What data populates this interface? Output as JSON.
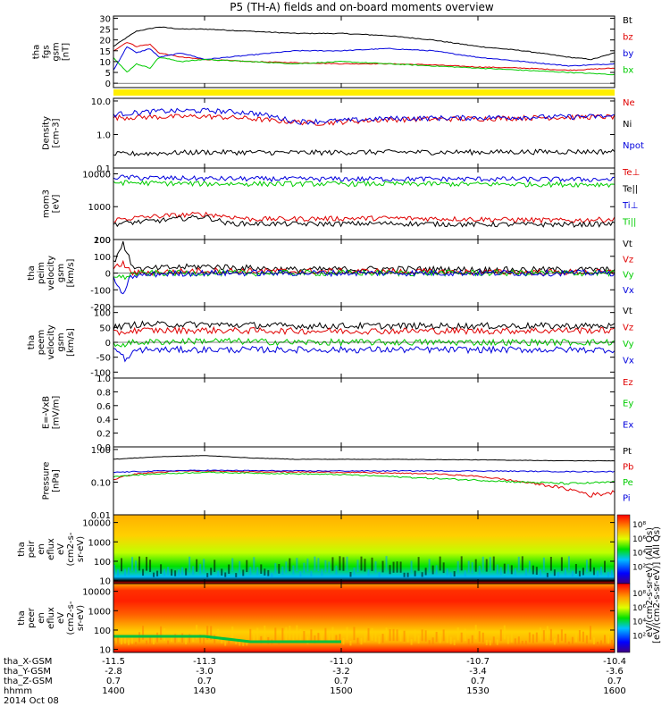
{
  "title": "P5 (TH-A) fields and on-board moments overview",
  "colors": {
    "black": "#000000",
    "red": "#e00000",
    "green": "#00cc00",
    "blue": "#0000dd",
    "yellow": "#ffee00"
  },
  "chart_data": [
    {
      "id": "fgs",
      "type": "line",
      "ylabel": [
        "tha",
        "fgs",
        "gsm",
        "[nT]"
      ],
      "ylim": [
        -2,
        31
      ],
      "yticks": [
        "30",
        "25",
        "20",
        "15",
        "10",
        "5",
        "0"
      ],
      "ytick_values": [
        30,
        25,
        20,
        15,
        10,
        5,
        0
      ],
      "series": [
        {
          "name": "Bt",
          "color": "#000000",
          "x": [
            -11.5,
            -11.45,
            -11.4,
            -11.35,
            -11.3,
            -11.2,
            -11.1,
            -11.0,
            -10.9,
            -10.8,
            -10.7,
            -10.6,
            -10.5,
            -10.45,
            -10.4
          ],
          "y": [
            17,
            24,
            26,
            25,
            25,
            24,
            23,
            23,
            22,
            20,
            17,
            15,
            12,
            11,
            14
          ]
        },
        {
          "name": "bz",
          "color": "#e00000",
          "x": [
            -11.5,
            -11.47,
            -11.45,
            -11.42,
            -11.4,
            -11.35,
            -11.3,
            -11.2,
            -11.1,
            -11.0,
            -10.9,
            -10.8,
            -10.7,
            -10.6,
            -10.5,
            -10.4
          ],
          "y": [
            15,
            19,
            17,
            18,
            14,
            12,
            11,
            10,
            9.5,
            9,
            9,
            8.5,
            7.5,
            7,
            6,
            7
          ]
        },
        {
          "name": "by",
          "color": "#0000dd",
          "x": [
            -11.5,
            -11.47,
            -11.45,
            -11.42,
            -11.4,
            -11.35,
            -11.3,
            -11.2,
            -11.1,
            -11.0,
            -10.9,
            -10.8,
            -10.7,
            -10.6,
            -10.5,
            -10.4
          ],
          "y": [
            6,
            17,
            14,
            16,
            12,
            14,
            11,
            13,
            15,
            15,
            16,
            15,
            12,
            10,
            8,
            9
          ]
        },
        {
          "name": "bx",
          "color": "#00cc00",
          "x": [
            -11.5,
            -11.47,
            -11.45,
            -11.42,
            -11.4,
            -11.35,
            -11.3,
            -11.2,
            -11.1,
            -11.0,
            -10.9,
            -10.8,
            -10.7,
            -10.6,
            -10.5,
            -10.4
          ],
          "y": [
            12,
            5,
            9,
            7,
            12,
            10,
            11,
            10,
            9,
            10,
            9,
            8,
            7,
            6,
            5,
            4
          ]
        }
      ]
    },
    {
      "id": "density",
      "type": "line",
      "ylabel": [
        "Density",
        "[cm-3]"
      ],
      "ylim": [
        0.1,
        12
      ],
      "log": true,
      "yticks": [
        "10.0",
        "1.0",
        "0.1"
      ],
      "ytick_values": [
        10,
        1,
        0.1
      ],
      "series": [
        {
          "name": "Ne",
          "color": "#e00000",
          "x": [
            -11.5,
            -11.45,
            -11.3,
            -11.2,
            -11.15,
            -11.05,
            -11.0,
            -10.9,
            -10.7,
            -10.5,
            -10.4
          ],
          "y": [
            3.2,
            3.3,
            3.5,
            3.0,
            2.6,
            2.2,
            2.4,
            2.8,
            3.0,
            3.3,
            3.4
          ]
        },
        {
          "name": "Ni",
          "color": "#000000",
          "x": [
            -11.5,
            -11.4,
            -11.3,
            -11.1,
            -10.9,
            -10.7,
            -10.5,
            -10.4
          ],
          "y": [
            0.26,
            0.28,
            0.3,
            0.29,
            0.3,
            0.3,
            0.31,
            0.31
          ]
        },
        {
          "name": "Npot",
          "color": "#0000dd",
          "x": [
            -11.5,
            -11.4,
            -11.3,
            -11.2,
            -11.1,
            -11.0,
            -10.9,
            -10.7,
            -10.5,
            -10.4
          ],
          "y": [
            4.0,
            5.0,
            5.2,
            4.5,
            2.4,
            2.6,
            3.0,
            3.2,
            3.4,
            3.5
          ]
        }
      ]
    },
    {
      "id": "mom3",
      "type": "line",
      "ylabel": [
        "mom3",
        "[eV]"
      ],
      "ylim": [
        100,
        15000
      ],
      "log": true,
      "yticks": [
        "10000",
        "1000",
        "100"
      ],
      "ytick_values": [
        10000,
        1000,
        100
      ],
      "series": [
        {
          "name": "Te⊥",
          "color": "#e00000",
          "x": [
            -11.5,
            -11.4,
            -11.3,
            -11.2,
            -11.1,
            -10.9,
            -10.7,
            -10.5,
            -10.4
          ],
          "y": [
            400,
            520,
            600,
            420,
            430,
            450,
            420,
            380,
            420
          ]
        },
        {
          "name": "Te||",
          "color": "#000000",
          "x": [
            -11.5,
            -11.4,
            -11.3,
            -11.25,
            -11.1,
            -10.9,
            -10.7,
            -10.5,
            -10.4
          ],
          "y": [
            300,
            380,
            500,
            310,
            300,
            310,
            290,
            290,
            300
          ]
        },
        {
          "name": "Ti⊥",
          "color": "#0000dd",
          "x": [
            -11.5,
            -11.4,
            -11.3,
            -11.1,
            -10.9,
            -10.7,
            -10.5,
            -10.4
          ],
          "y": [
            8000,
            7500,
            7200,
            7000,
            7000,
            7000,
            6800,
            6800
          ]
        },
        {
          "name": "Ti||",
          "color": "#00cc00",
          "x": [
            -11.5,
            -11.4,
            -11.3,
            -11.1,
            -10.9,
            -10.7,
            -10.5,
            -10.4
          ],
          "y": [
            5500,
            5200,
            5000,
            5000,
            5000,
            4900,
            4800,
            4800
          ]
        }
      ]
    },
    {
      "id": "peim",
      "type": "line",
      "ylabel": [
        "tha",
        "peim",
        "velocity",
        "gsm",
        "[km/s]"
      ],
      "ylim": [
        -200,
        200
      ],
      "yticks": [
        "200",
        "100",
        "0",
        "-100",
        "-200"
      ],
      "ytick_values": [
        200,
        100,
        0,
        -100,
        -200
      ],
      "series": [
        {
          "name": "Vt",
          "color": "#000000",
          "x": [
            -11.5,
            -11.48,
            -11.46,
            -11.44,
            -11.4,
            -11.3,
            -11.1,
            -10.9,
            -10.7,
            -10.5,
            -10.4
          ],
          "y": [
            60,
            180,
            50,
            20,
            30,
            40,
            20,
            25,
            20,
            20,
            20
          ]
        },
        {
          "name": "Vz",
          "color": "#e00000",
          "x": [
            -11.5,
            -11.48,
            -11.46,
            -11.4,
            -11.3,
            -11.1,
            -10.9,
            -10.7,
            -10.5,
            -10.4
          ],
          "y": [
            20,
            60,
            0,
            5,
            15,
            10,
            10,
            5,
            5,
            5
          ]
        },
        {
          "name": "Vy",
          "color": "#00cc00",
          "x": [
            -11.5,
            -11.48,
            -11.46,
            -11.4,
            -11.3,
            -11.1,
            -10.9,
            -10.7,
            -10.5,
            -10.4
          ],
          "y": [
            -10,
            -30,
            -5,
            0,
            0,
            0,
            0,
            0,
            0,
            0
          ]
        },
        {
          "name": "Vx",
          "color": "#0000dd",
          "x": [
            -11.5,
            -11.48,
            -11.47,
            -11.46,
            -11.4,
            -11.3,
            -11.1,
            -10.9,
            -10.7,
            -10.5,
            -10.4
          ],
          "y": [
            -20,
            -150,
            -60,
            -20,
            -5,
            0,
            0,
            0,
            0,
            0,
            0
          ]
        }
      ]
    },
    {
      "id": "peem",
      "type": "line",
      "ylabel": [
        "tha",
        "peem",
        "velocity",
        "gsm",
        "[km/s]"
      ],
      "ylim": [
        -120,
        120
      ],
      "yticks": [
        "100",
        "50",
        "0",
        "-50",
        "-100"
      ],
      "ytick_values": [
        100,
        50,
        0,
        -50,
        -100
      ],
      "series": [
        {
          "name": "Vt",
          "color": "#000000",
          "x": [
            -11.5,
            -11.45,
            -11.3,
            -11.1,
            -10.9,
            -10.7,
            -10.5,
            -10.4
          ],
          "y": [
            50,
            60,
            60,
            55,
            55,
            55,
            55,
            55
          ]
        },
        {
          "name": "Vz",
          "color": "#e00000",
          "x": [
            -11.5,
            -11.45,
            -11.3,
            -11.1,
            -10.9,
            -10.7,
            -10.5,
            -10.4
          ],
          "y": [
            30,
            40,
            40,
            38,
            38,
            38,
            40,
            40
          ]
        },
        {
          "name": "Vy",
          "color": "#00cc00",
          "x": [
            -11.5,
            -11.45,
            -11.3,
            -11.1,
            -10.9,
            -10.7,
            -10.5,
            -10.4
          ],
          "y": [
            -10,
            0,
            5,
            0,
            0,
            0,
            0,
            0
          ]
        },
        {
          "name": "Vx",
          "color": "#0000dd",
          "x": [
            -11.5,
            -11.47,
            -11.45,
            -11.3,
            -11.1,
            -10.9,
            -10.7,
            -10.5,
            -10.4
          ],
          "y": [
            -20,
            -60,
            -25,
            -25,
            -25,
            -25,
            -25,
            -25,
            -25
          ]
        }
      ]
    },
    {
      "id": "efield",
      "type": "line",
      "ylabel": [
        "E=-VxB",
        "[mV/m]"
      ],
      "ylim": [
        0,
        1
      ],
      "yticks": [
        "1.0",
        "0.8",
        "0.6",
        "0.4",
        "0.2",
        "0.0"
      ],
      "ytick_values": [
        1,
        0.8,
        0.6,
        0.4,
        0.2,
        0
      ],
      "series": [
        {
          "name": "Ez",
          "color": "#e00000",
          "x": [],
          "y": []
        },
        {
          "name": "Ey",
          "color": "#00cc00",
          "x": [],
          "y": []
        },
        {
          "name": "Ex",
          "color": "#0000dd",
          "x": [],
          "y": []
        }
      ]
    },
    {
      "id": "pressure",
      "type": "line",
      "ylabel": [
        "Pressure",
        "[nPa]"
      ],
      "ylim": [
        0.01,
        1.2
      ],
      "log": true,
      "yticks": [
        "1.00",
        "0.10",
        "0.01"
      ],
      "ytick_values": [
        1,
        0.1,
        0.01
      ],
      "series": [
        {
          "name": "Pt",
          "color": "#000000",
          "x": [
            -11.5,
            -11.4,
            -11.3,
            -11.2,
            -11.1,
            -10.9,
            -10.7,
            -10.5,
            -10.4
          ],
          "y": [
            0.5,
            0.6,
            0.65,
            0.55,
            0.5,
            0.5,
            0.48,
            0.45,
            0.45
          ]
        },
        {
          "name": "Pb",
          "color": "#e00000",
          "x": [
            -11.5,
            -11.45,
            -11.35,
            -11.2,
            -11.0,
            -10.8,
            -10.7,
            -10.6,
            -10.5,
            -10.45,
            -10.4
          ],
          "y": [
            0.12,
            0.18,
            0.22,
            0.21,
            0.2,
            0.18,
            0.15,
            0.1,
            0.06,
            0.04,
            0.05
          ]
        },
        {
          "name": "Pe",
          "color": "#00cc00",
          "x": [
            -11.5,
            -11.4,
            -11.3,
            -11.2,
            -11.0,
            -10.8,
            -10.6,
            -10.5,
            -10.4
          ],
          "y": [
            0.15,
            0.18,
            0.2,
            0.19,
            0.17,
            0.13,
            0.1,
            0.09,
            0.1
          ]
        },
        {
          "name": "Pi",
          "color": "#0000dd",
          "x": [
            -11.5,
            -11.4,
            -11.3,
            -11.1,
            -10.9,
            -10.7,
            -10.5,
            -10.4
          ],
          "y": [
            0.2,
            0.22,
            0.23,
            0.22,
            0.22,
            0.22,
            0.21,
            0.21
          ]
        }
      ]
    },
    {
      "id": "peir",
      "type": "heatmap",
      "ylabel": [
        "tha",
        "peir",
        "en",
        "eflux",
        "eV",
        "(cm2-s-",
        "sr-eV)"
      ],
      "ylim": [
        7,
        25000
      ],
      "log": true,
      "yticks": [
        "10000",
        "1000",
        "100",
        "10"
      ],
      "ytick_values": [
        10000,
        1000,
        100,
        10
      ]
    },
    {
      "id": "peer",
      "type": "heatmap",
      "ylabel": [
        "tha",
        "peer",
        "en",
        "eflux",
        "eV",
        "(cm2-s-",
        "sr-eV)"
      ],
      "ylim": [
        7,
        25000
      ],
      "log": true,
      "yticks": [
        "10000",
        "1000",
        "100",
        "10"
      ],
      "ytick_values": [
        10000,
        1000,
        100,
        10
      ]
    }
  ],
  "colorbar": {
    "label": "[eV/(cm2-s-sr-eV)] (All Qs)",
    "label2": "eV/(cm2-s-sr-eV) (All Qs)",
    "ticks1": [
      "10⁸",
      "10⁶",
      "10⁴",
      "10²"
    ],
    "ticks2": [
      "10⁸",
      "10⁶",
      "10⁴",
      "10²"
    ]
  },
  "xaxis": {
    "ticks": [
      -11.5,
      -11.3,
      -11.0,
      -10.7,
      -10.4
    ],
    "rows": [
      {
        "label": "tha_X-GSM",
        "values": [
          "-11.5",
          "-11.3",
          "-11.0",
          "-10.7",
          "-10.4"
        ]
      },
      {
        "label": "tha_Y-GSM",
        "values": [
          "-2.8",
          "-3.0",
          "-3.2",
          "-3.4",
          "-3.6"
        ]
      },
      {
        "label": "tha_Z-GSM",
        "values": [
          "0.7",
          "0.7",
          "0.7",
          "0.7",
          "0.7"
        ]
      },
      {
        "label": "hhmm",
        "values": [
          "1400",
          "1430",
          "1500",
          "1530",
          "1600"
        ]
      }
    ],
    "date": "2014 Oct 08"
  }
}
